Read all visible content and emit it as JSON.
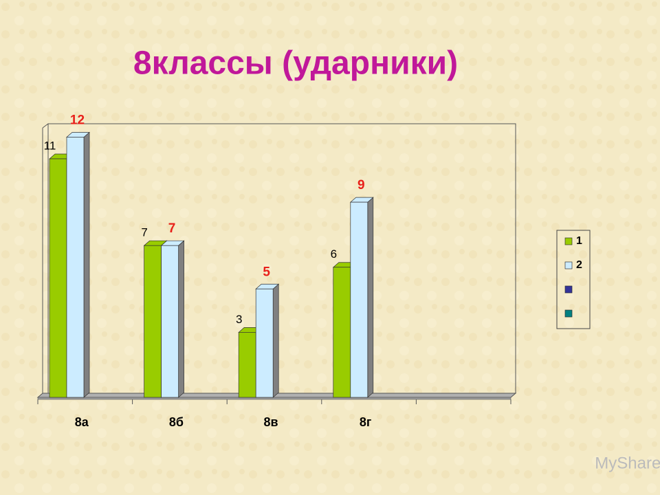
{
  "chart_data": {
    "type": "bar",
    "title": "8классы (ударники)",
    "categories": [
      "8а",
      "8б",
      "8в",
      "8г",
      null
    ],
    "series": [
      {
        "name": "1",
        "color": "#99cc00",
        "values": [
          11,
          7,
          3,
          6,
          null
        ],
        "label_color": "#000000"
      },
      {
        "name": "2",
        "color": "#ccecff",
        "values": [
          12,
          7,
          5,
          9,
          null
        ],
        "label_color": "#e8201a"
      },
      {
        "name": null,
        "color": "#333399",
        "values": [
          null,
          null,
          null,
          null,
          null
        ]
      },
      {
        "name": null,
        "color": "#008080",
        "values": [
          null,
          null,
          null,
          null,
          null
        ]
      }
    ],
    "ylim": [
      0,
      12.3
    ],
    "legend": "right",
    "watermark": "MyShared"
  }
}
